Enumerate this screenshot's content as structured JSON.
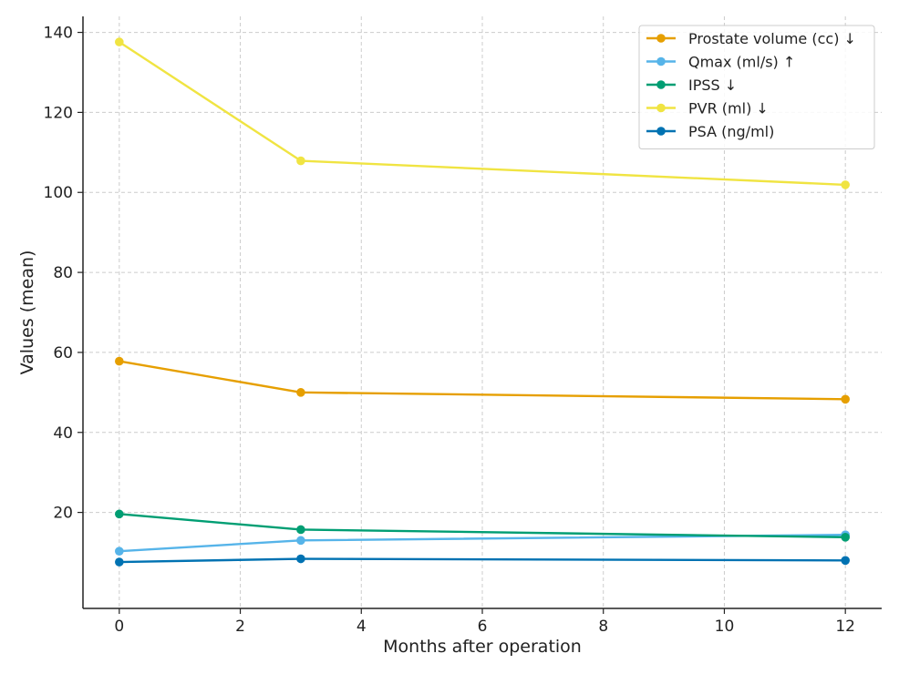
{
  "chart_data": {
    "type": "line",
    "title": "",
    "xlabel": "Months after operation",
    "ylabel": "Values (mean)",
    "xlim": [
      -0.6,
      12.6
    ],
    "ylim": [
      -4,
      144
    ],
    "xticks": [
      0,
      2,
      4,
      6,
      8,
      10,
      12
    ],
    "yticks": [
      20,
      40,
      60,
      80,
      100,
      120,
      140
    ],
    "grid": true,
    "legend_position": "top-right",
    "x": [
      0,
      3,
      12
    ],
    "series": [
      {
        "name": "Prostate volume (cc) ↓",
        "color": "#E69F00",
        "values": [
          57.8,
          50.0,
          48.3
        ]
      },
      {
        "name": "Qmax (ml/s) ↑",
        "color": "#56B4E9",
        "values": [
          10.3,
          13.0,
          14.4
        ]
      },
      {
        "name": "IPSS ↓",
        "color": "#009E73",
        "values": [
          19.6,
          15.7,
          13.8
        ]
      },
      {
        "name": "PVR (ml) ↓",
        "color": "#F0E442",
        "values": [
          137.6,
          107.9,
          101.9
        ]
      },
      {
        "name": "PSA (ng/ml)",
        "color": "#0072B2",
        "values": [
          7.6,
          8.4,
          8.0
        ]
      }
    ]
  }
}
